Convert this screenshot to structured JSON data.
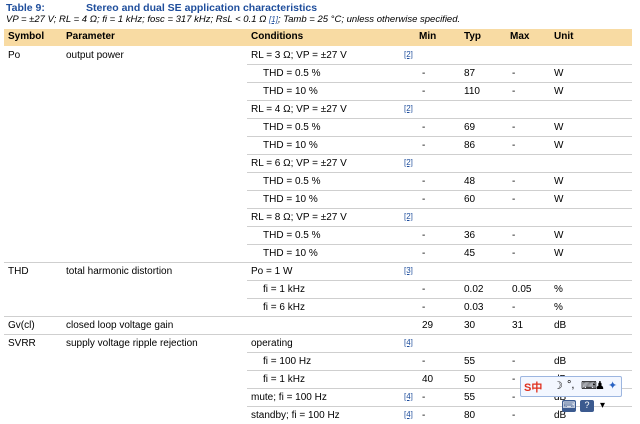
{
  "caption": {
    "number": "Table 9:",
    "title": "Stereo and dual SE application characteristics",
    "conditions": "VP = ±27 V; RL = 4 Ω; fi = 1 kHz; fosc = 317 kHz; RsL < 0.1 Ω ",
    "note_ref": "[1]",
    "conditions_end": "; Tamb = 25 °C; unless otherwise specified."
  },
  "header": {
    "symbol": "Symbol",
    "parameter": "Parameter",
    "conditions": "Conditions",
    "min": "Min",
    "typ": "Typ",
    "max": "Max",
    "unit": "Unit"
  },
  "rows": [
    {
      "symbol": "Po",
      "parameter": "output power",
      "cond": "RL = 3 Ω; VP = ±27 V",
      "indent": false,
      "ref": "[2]",
      "min": "",
      "typ": "",
      "max": "",
      "unit": "",
      "line": "full"
    },
    {
      "symbol": "",
      "parameter": "",
      "cond": "THD = 0.5 %",
      "indent": true,
      "ref": "",
      "min": "-",
      "typ": "87",
      "max": "-",
      "unit": "W",
      "line": "cond"
    },
    {
      "symbol": "",
      "parameter": "",
      "cond": "THD = 10 %",
      "indent": true,
      "ref": "",
      "min": "-",
      "typ": "110",
      "max": "-",
      "unit": "W",
      "line": "cond"
    },
    {
      "symbol": "",
      "parameter": "",
      "cond": "RL = 4 Ω; VP = ±27 V",
      "indent": false,
      "ref": "[2]",
      "min": "",
      "typ": "",
      "max": "",
      "unit": "",
      "line": "cond"
    },
    {
      "symbol": "",
      "parameter": "",
      "cond": "THD = 0.5 %",
      "indent": true,
      "ref": "",
      "min": "-",
      "typ": "69",
      "max": "-",
      "unit": "W",
      "line": "cond"
    },
    {
      "symbol": "",
      "parameter": "",
      "cond": "THD = 10 %",
      "indent": true,
      "ref": "",
      "min": "-",
      "typ": "86",
      "max": "-",
      "unit": "W",
      "line": "cond"
    },
    {
      "symbol": "",
      "parameter": "",
      "cond": "RL = 6 Ω; VP = ±27 V",
      "indent": false,
      "ref": "[2]",
      "min": "",
      "typ": "",
      "max": "",
      "unit": "",
      "line": "cond"
    },
    {
      "symbol": "",
      "parameter": "",
      "cond": "THD = 0.5 %",
      "indent": true,
      "ref": "",
      "min": "-",
      "typ": "48",
      "max": "-",
      "unit": "W",
      "line": "cond"
    },
    {
      "symbol": "",
      "parameter": "",
      "cond": "THD = 10 %",
      "indent": true,
      "ref": "",
      "min": "-",
      "typ": "60",
      "max": "-",
      "unit": "W",
      "line": "cond"
    },
    {
      "symbol": "",
      "parameter": "",
      "cond": "RL = 8 Ω; VP = ±27 V",
      "indent": false,
      "ref": "[2]",
      "min": "",
      "typ": "",
      "max": "",
      "unit": "",
      "line": "cond"
    },
    {
      "symbol": "",
      "parameter": "",
      "cond": "THD = 0.5 %",
      "indent": true,
      "ref": "",
      "min": "-",
      "typ": "36",
      "max": "-",
      "unit": "W",
      "line": "cond"
    },
    {
      "symbol": "",
      "parameter": "",
      "cond": "THD = 10 %",
      "indent": true,
      "ref": "",
      "min": "-",
      "typ": "45",
      "max": "-",
      "unit": "W",
      "line": "cond"
    },
    {
      "symbol": "THD",
      "parameter": "total harmonic distortion",
      "cond": "Po = 1 W",
      "indent": false,
      "ref": "[3]",
      "min": "",
      "typ": "",
      "max": "",
      "unit": "",
      "line": "full"
    },
    {
      "symbol": "",
      "parameter": "",
      "cond": "fi = 1 kHz",
      "indent": true,
      "ref": "",
      "min": "-",
      "typ": "0.02",
      "max": "0.05",
      "unit": "%",
      "line": "cond"
    },
    {
      "symbol": "",
      "parameter": "",
      "cond": "fi = 6 kHz",
      "indent": true,
      "ref": "",
      "min": "-",
      "typ": "0.03",
      "max": "-",
      "unit": "%",
      "line": "cond"
    },
    {
      "symbol": "Gv(cl)",
      "parameter": "closed loop voltage gain",
      "cond": "",
      "indent": false,
      "ref": "",
      "min": "29",
      "typ": "30",
      "max": "31",
      "unit": "dB",
      "line": "full"
    },
    {
      "symbol": "SVRR",
      "parameter": "supply voltage ripple rejection",
      "cond": "operating",
      "indent": false,
      "ref": "[4]",
      "min": "",
      "typ": "",
      "max": "",
      "unit": "",
      "line": "full"
    },
    {
      "symbol": "",
      "parameter": "",
      "cond": "fi = 100 Hz",
      "indent": true,
      "ref": "",
      "min": "-",
      "typ": "55",
      "max": "-",
      "unit": "dB",
      "line": "cond"
    },
    {
      "symbol": "",
      "parameter": "",
      "cond": "fi = 1 kHz",
      "indent": true,
      "ref": "",
      "min": "40",
      "typ": "50",
      "max": "-",
      "unit": "dB",
      "line": "cond"
    },
    {
      "symbol": "",
      "parameter": "",
      "cond": "mute; fi = 100 Hz",
      "indent": false,
      "ref": "[4]",
      "min": "-",
      "typ": "55",
      "max": "-",
      "unit": "dB",
      "line": "cond"
    },
    {
      "symbol": "",
      "parameter": "",
      "cond": "standby; fi = 100 Hz",
      "indent": false,
      "ref": "[4]",
      "min": "-",
      "typ": "80",
      "max": "-",
      "unit": "dB",
      "line": "cond"
    }
  ],
  "ime_toolbar": {
    "label": "S中",
    "icons": [
      "moon-icon",
      "punctuation-icon",
      "keyboard-icon",
      "user-icon",
      "wrench-icon"
    ]
  }
}
